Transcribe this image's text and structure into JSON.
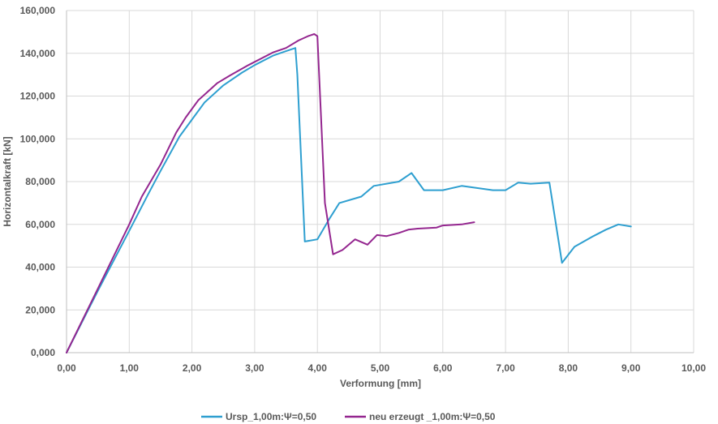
{
  "chart_data": {
    "type": "line",
    "title": "",
    "xlabel": "Verformung [mm]",
    "ylabel": "Horizontalkraft [kN]",
    "xlim": [
      0,
      10
    ],
    "ylim": [
      0,
      160000
    ],
    "grid": true,
    "legend_position": "bottom",
    "x_ticks": [
      0,
      1,
      2,
      3,
      4,
      5,
      6,
      7,
      8,
      9,
      10
    ],
    "x_tick_labels": [
      "0,00",
      "1,00",
      "2,00",
      "3,00",
      "4,00",
      "5,00",
      "6,00",
      "7,00",
      "8,00",
      "9,00",
      "10,00"
    ],
    "y_ticks": [
      0,
      20000,
      40000,
      60000,
      80000,
      100000,
      120000,
      140000,
      160000
    ],
    "y_tick_labels": [
      "0,000",
      "20,000",
      "40,000",
      "60,000",
      "80,000",
      "100,000",
      "120,000",
      "140,000",
      "160,000"
    ],
    "series": [
      {
        "name": "Ursp_1,00m:Ψ=0,50",
        "color": "#2e9fd0",
        "points": [
          [
            0,
            0
          ],
          [
            0.5,
            29000
          ],
          [
            1.0,
            57000
          ],
          [
            1.3,
            74000
          ],
          [
            1.5,
            85000
          ],
          [
            1.8,
            101000
          ],
          [
            2.0,
            109000
          ],
          [
            2.2,
            117000
          ],
          [
            2.5,
            125000
          ],
          [
            2.8,
            131000
          ],
          [
            3.0,
            134500
          ],
          [
            3.3,
            139000
          ],
          [
            3.5,
            141000
          ],
          [
            3.65,
            142500
          ],
          [
            3.68,
            130000
          ],
          [
            3.8,
            52000
          ],
          [
            4.0,
            53000
          ],
          [
            4.2,
            63000
          ],
          [
            4.35,
            70000
          ],
          [
            4.7,
            73000
          ],
          [
            4.9,
            78000
          ],
          [
            5.3,
            80000
          ],
          [
            5.5,
            84000
          ],
          [
            5.7,
            76000
          ],
          [
            6.0,
            76000
          ],
          [
            6.3,
            78000
          ],
          [
            6.8,
            76000
          ],
          [
            7.0,
            76000
          ],
          [
            7.2,
            79500
          ],
          [
            7.4,
            79000
          ],
          [
            7.7,
            79500
          ],
          [
            7.9,
            42000
          ],
          [
            8.1,
            49500
          ],
          [
            8.4,
            54500
          ],
          [
            8.6,
            57500
          ],
          [
            8.8,
            60000
          ],
          [
            9.0,
            59000
          ]
        ]
      },
      {
        "name": "neu erzeugt _1,00m:Ψ=0,50",
        "color": "#94268f",
        "points": [
          [
            0,
            0
          ],
          [
            0.5,
            30000
          ],
          [
            1.0,
            60000
          ],
          [
            1.2,
            73000
          ],
          [
            1.5,
            88000
          ],
          [
            1.75,
            103000
          ],
          [
            1.9,
            110000
          ],
          [
            2.1,
            118000
          ],
          [
            2.4,
            126000
          ],
          [
            2.6,
            129500
          ],
          [
            2.9,
            134500
          ],
          [
            3.3,
            140500
          ],
          [
            3.5,
            142500
          ],
          [
            3.7,
            146000
          ],
          [
            3.85,
            148000
          ],
          [
            3.95,
            149000
          ],
          [
            4.0,
            148000
          ],
          [
            4.12,
            70000
          ],
          [
            4.25,
            46000
          ],
          [
            4.4,
            48000
          ],
          [
            4.6,
            53000
          ],
          [
            4.8,
            50500
          ],
          [
            4.95,
            55000
          ],
          [
            5.1,
            54500
          ],
          [
            5.3,
            56000
          ],
          [
            5.45,
            57500
          ],
          [
            5.6,
            58000
          ],
          [
            5.9,
            58500
          ],
          [
            6.0,
            59500
          ],
          [
            6.3,
            60000
          ],
          [
            6.5,
            61000
          ]
        ]
      }
    ]
  }
}
